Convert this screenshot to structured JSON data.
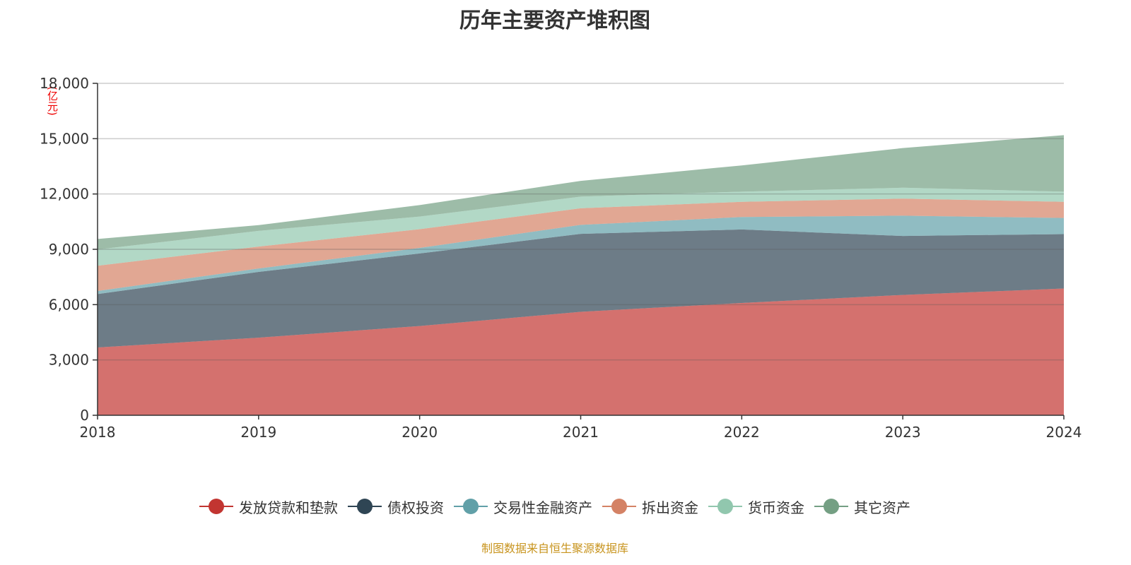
{
  "chart_data": {
    "type": "area",
    "stacked": true,
    "title": "历年主要资产堆积图",
    "ylabel": "(亿元)",
    "xlabel": "",
    "categories": [
      "2018",
      "2019",
      "2020",
      "2021",
      "2022",
      "2023",
      "2024"
    ],
    "ylim": [
      0,
      18000
    ],
    "yticks": [
      0,
      3000,
      6000,
      9000,
      12000,
      15000,
      18000
    ],
    "ytick_labels": [
      "0",
      "3,000",
      "6,000",
      "9,000",
      "12,000",
      "15,000",
      "18,000"
    ],
    "grid": true,
    "legend_position": "bottom",
    "series": [
      {
        "name": "发放贷款和垫款",
        "color": "#c23531",
        "values": [
          3675,
          4210,
          4840,
          5610,
          6090,
          6525,
          6875
        ]
      },
      {
        "name": "债权投资",
        "color": "#2f4554",
        "values": [
          2900,
          3565,
          3935,
          4230,
          3985,
          3200,
          2950
        ]
      },
      {
        "name": "交易性金融资产",
        "color": "#61a0a8",
        "values": [
          165,
          185,
          300,
          485,
          675,
          1100,
          875
        ]
      },
      {
        "name": "拆出资金",
        "color": "#d48265",
        "values": [
          1370,
          1190,
          1015,
          900,
          825,
          925,
          875
        ]
      },
      {
        "name": "货币资金",
        "color": "#91c7ae",
        "values": [
          880,
          850,
          685,
          635,
          550,
          590,
          550
        ]
      },
      {
        "name": "其它资产",
        "color": "#749f83",
        "values": [
          570,
          310,
          625,
          850,
          1425,
          2150,
          3065
        ]
      }
    ]
  },
  "footer": "制图数据来自恒生聚源数据库"
}
